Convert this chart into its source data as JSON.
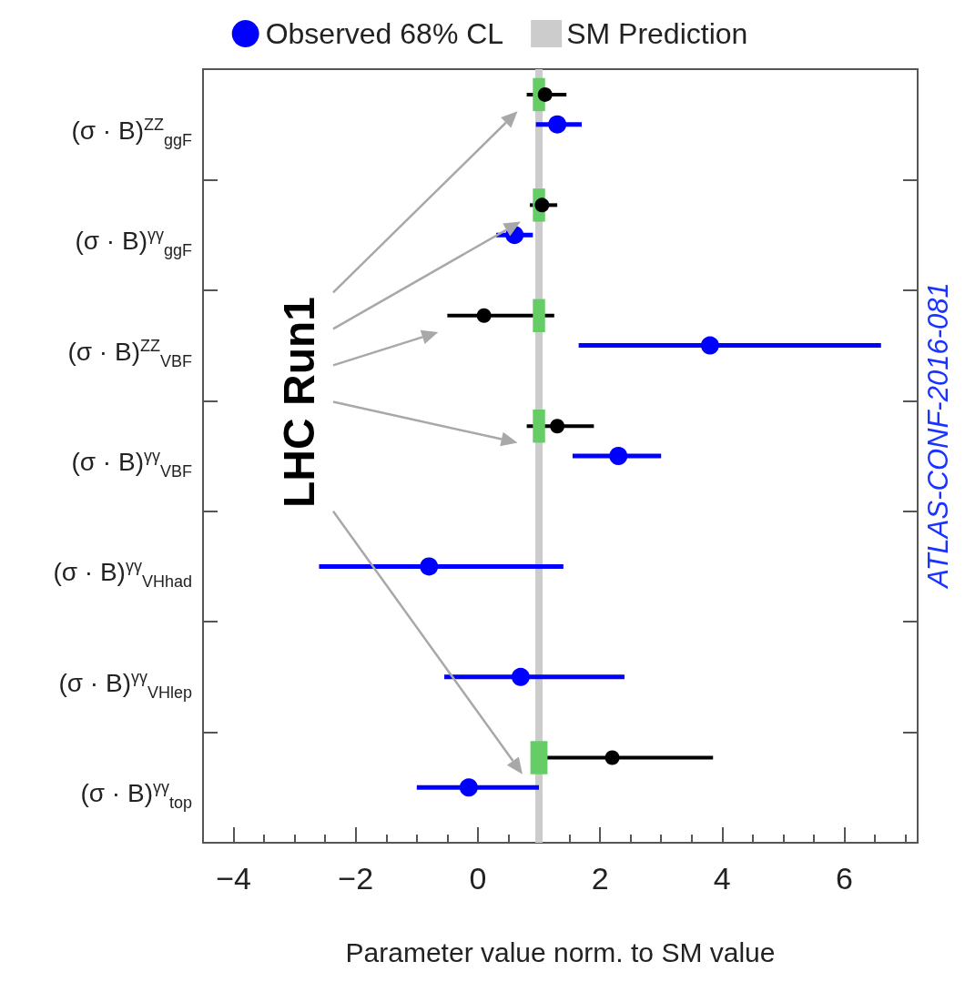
{
  "chart_data": {
    "type": "scatter",
    "orientation": "horizontal",
    "xlabel": "Parameter value norm. to SM value",
    "categories": [
      "(σ · B)$^{ZZ}$$_{ggF}$",
      "(σ · B)$^{γγ}$$_{ggF}$",
      "(σ · B)$^{ZZ}$$_{VBF}$",
      "(σ · B)$^{γγ}$$_{VBF}$",
      "(σ · B)$^{γγ}$$_{VHhad}$",
      "(σ · B)$^{γγ}$$_{VHlep}$",
      "(σ · B)$^{γγ}$$_{top}$"
    ],
    "series": [
      {
        "name": "Observed 68% CL",
        "color": "#0000ff",
        "values": [
          1.3,
          0.6,
          3.8,
          2.3,
          -0.8,
          0.7,
          -0.15
        ],
        "errors": [
          [
            0.95,
            1.7
          ],
          [
            0.3,
            0.9
          ],
          [
            1.65,
            6.6
          ],
          [
            1.55,
            3.0
          ],
          [
            -2.6,
            1.4
          ],
          [
            -0.55,
            2.4
          ],
          [
            -1.0,
            1.0
          ]
        ]
      },
      {
        "name": "LHC Run1",
        "color": "#000000",
        "values": [
          1.1,
          1.05,
          0.1,
          1.3,
          null,
          null,
          2.2
        ],
        "errors": [
          [
            0.8,
            1.45
          ],
          [
            0.85,
            1.3
          ],
          [
            -0.5,
            1.25
          ],
          [
            0.8,
            1.9
          ],
          null,
          null,
          [
            0.88,
            3.85
          ]
        ]
      },
      {
        "type": "bar",
        "color": "#66cc66",
        "base": [
          0.9,
          0.9,
          0.9,
          0.9,
          null,
          null,
          0.86
        ],
        "values": [
          0.2,
          0.2,
          0.2,
          0.2,
          null,
          null,
          0.28
        ]
      }
    ],
    "bands": [
      {
        "axis": "x",
        "from": 0.94,
        "to": 1.06,
        "label": "SM Prediction",
        "color": "#cccccc"
      }
    ],
    "xlim": [
      -4.5,
      7.2
    ],
    "xticks": [
      -4,
      -2,
      0,
      2,
      4,
      6
    ],
    "marker": "circle",
    "grid": false,
    "legend": "top",
    "annotations": [
      "ATLAS-CONF-2016-081"
    ]
  }
}
